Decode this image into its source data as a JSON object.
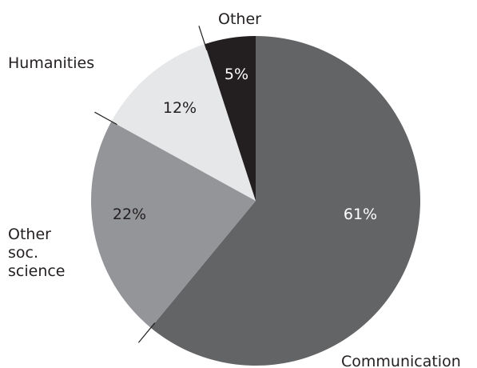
{
  "chart_data": {
    "type": "pie",
    "slices": [
      {
        "label": "Communication",
        "value": 61,
        "value_label": "61%",
        "color": "#636466",
        "text_color": "#ffffff"
      },
      {
        "label": "Other\nsoc.\nscience",
        "value": 22,
        "value_label": "22%",
        "color": "#939598",
        "text_color": "#231f20"
      },
      {
        "label": "Humanities",
        "value": 12,
        "value_label": "12%",
        "color": "#e6e7e8",
        "text_color": "#231f20"
      },
      {
        "label": "Other",
        "value": 5,
        "value_label": "5%",
        "color": "#231f20",
        "text_color": "#ffffff"
      }
    ],
    "start_at": "top",
    "direction": "clockwise"
  }
}
